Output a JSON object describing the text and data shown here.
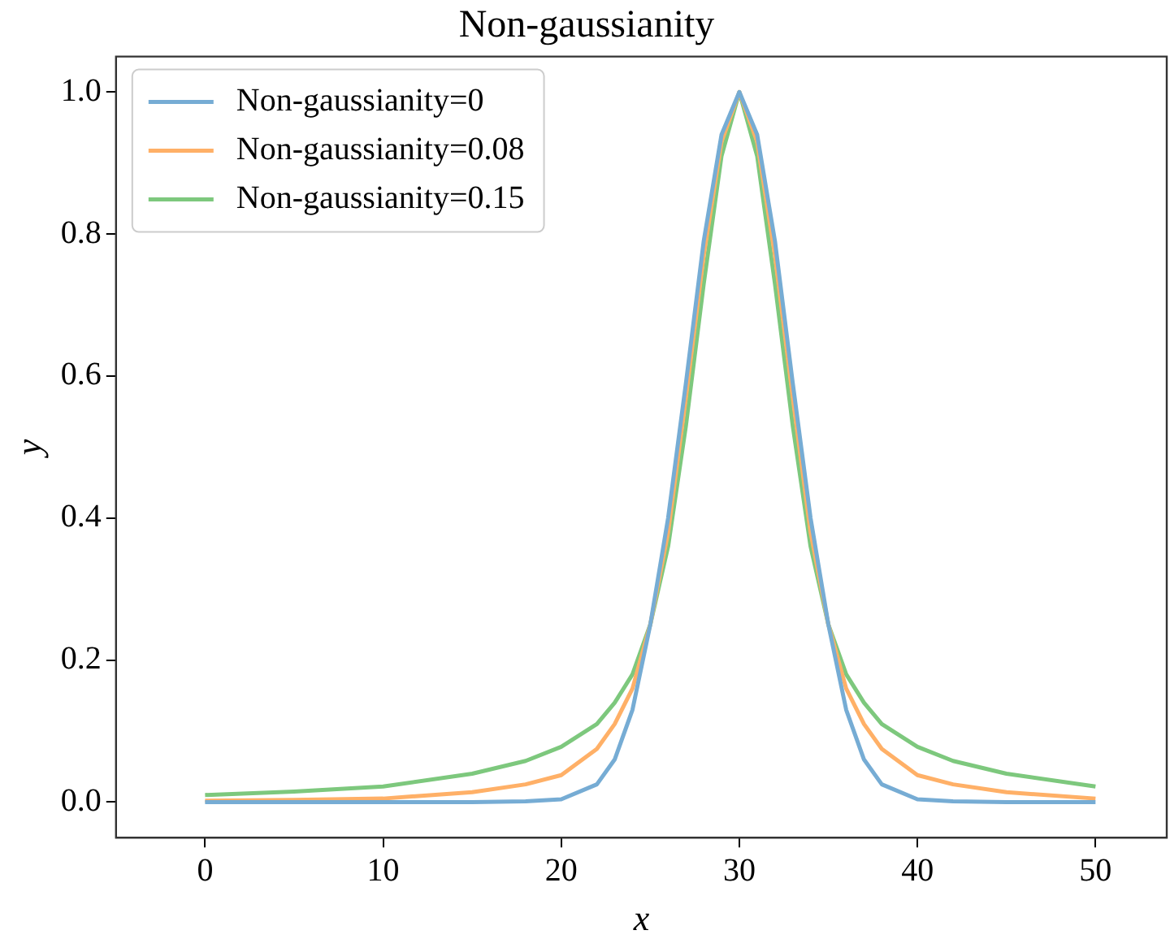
{
  "chart_data": {
    "type": "line",
    "title": "Non-gaussianity",
    "xlabel": "x",
    "ylabel": "y",
    "x": [
      0,
      5,
      10,
      15,
      18,
      20,
      22,
      23,
      24,
      25,
      26,
      27,
      28,
      29,
      30,
      31,
      32,
      33,
      34,
      35,
      36,
      37,
      38,
      40,
      42,
      45,
      50
    ],
    "series": [
      {
        "name": "Non-gaussianity=0",
        "color": "#76acd4",
        "values": [
          0,
          0,
          0,
          0,
          0.001,
          0.004,
          0.025,
          0.06,
          0.13,
          0.25,
          0.4,
          0.59,
          0.79,
          0.94,
          1,
          0.94,
          0.79,
          0.59,
          0.4,
          0.25,
          0.13,
          0.06,
          0.025,
          0.004,
          0.001,
          0,
          0
        ]
      },
      {
        "name": "Non-gaussianity=0.08",
        "color": "#ffb067",
        "values": [
          0.002,
          0.003,
          0.005,
          0.014,
          0.025,
          0.038,
          0.075,
          0.11,
          0.16,
          0.25,
          0.38,
          0.57,
          0.77,
          0.93,
          1,
          0.93,
          0.77,
          0.57,
          0.38,
          0.25,
          0.16,
          0.11,
          0.075,
          0.038,
          0.025,
          0.014,
          0.005
        ]
      },
      {
        "name": "Non-gaussianity=0.15",
        "color": "#7dc87d",
        "values": [
          0.01,
          0.015,
          0.022,
          0.04,
          0.058,
          0.078,
          0.11,
          0.14,
          0.18,
          0.25,
          0.36,
          0.53,
          0.73,
          0.91,
          1,
          0.91,
          0.73,
          0.53,
          0.36,
          0.25,
          0.18,
          0.14,
          0.11,
          0.078,
          0.058,
          0.04,
          0.022
        ]
      }
    ],
    "xlim": [
      -5,
      54
    ],
    "xticks": [
      0,
      10,
      20,
      30,
      40,
      50
    ],
    "ylim": [
      -0.05,
      1.05
    ],
    "yticks": [
      {
        "value": 0,
        "label": "0.0"
      },
      {
        "value": 0.2,
        "label": "0.2"
      },
      {
        "value": 0.4,
        "label": "0.4"
      },
      {
        "value": 0.6,
        "label": "0.6"
      },
      {
        "value": 0.8,
        "label": "0.8"
      },
      {
        "value": 1,
        "label": "1.0"
      }
    ],
    "grid": false,
    "legend": "top left",
    "marker": "none",
    "line_style": "solid"
  }
}
